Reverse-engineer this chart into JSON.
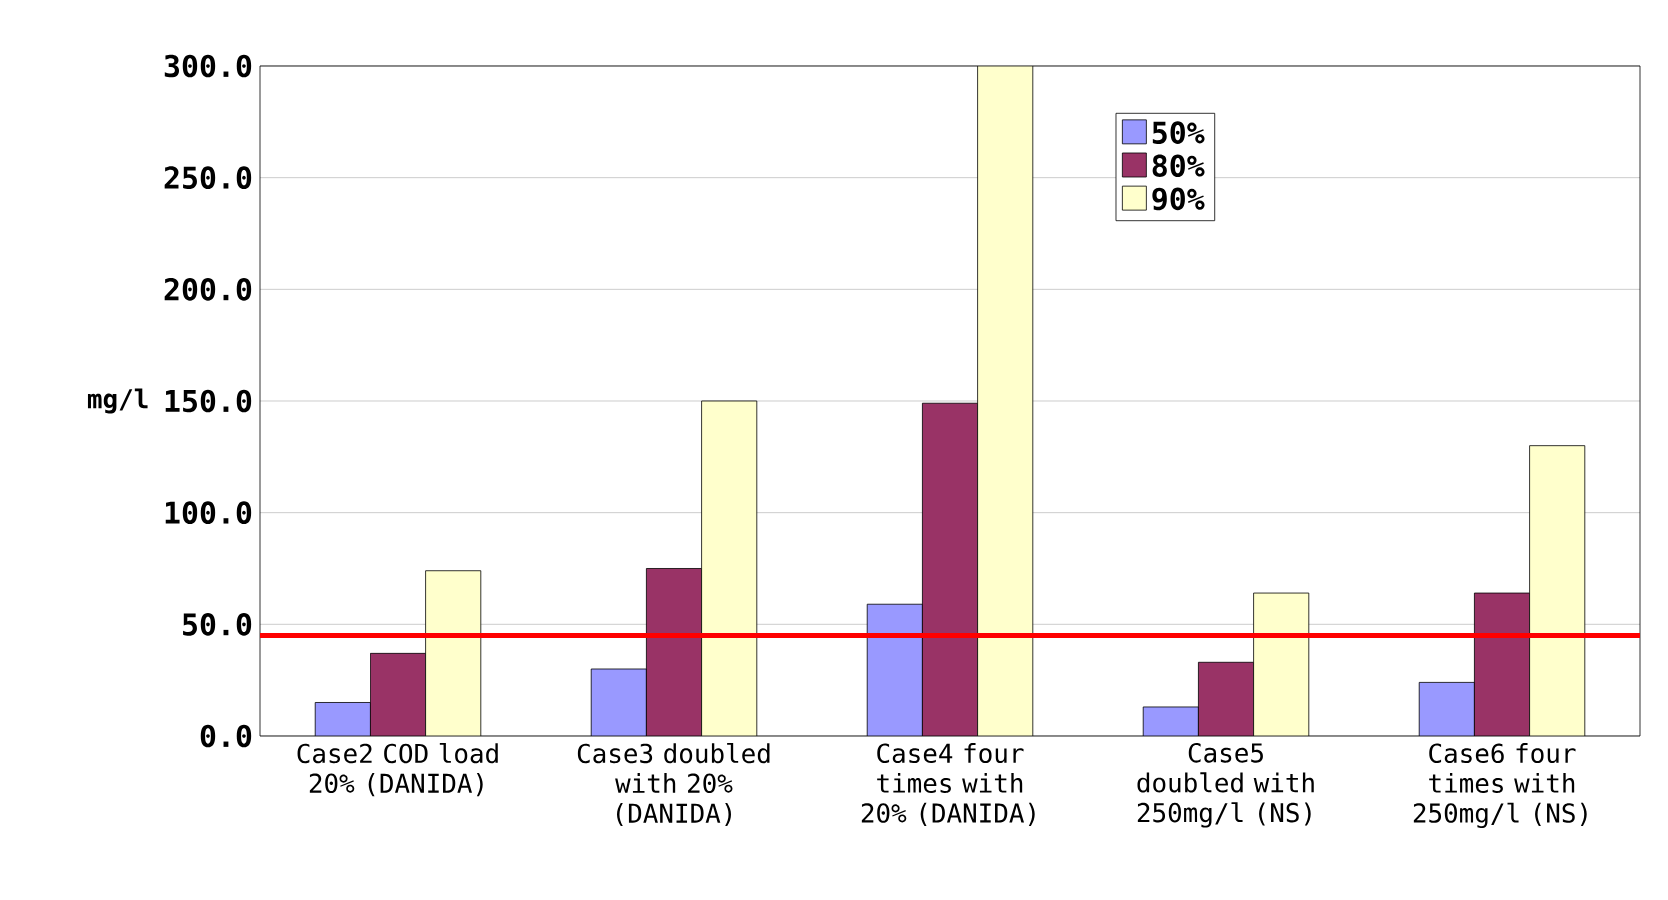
{
  "chart_data": {
    "type": "bar",
    "ylabel": "mg/l",
    "categories": [
      "Case2 COD load 20% (DANIDA)",
      "Case3 doubled with 20% (DANIDA)",
      "Case4 four times with 20% (DANIDA)",
      "Case5 doubled with 250mg/l (NS)",
      "Case6 four times with 250mg/l (NS)"
    ],
    "series": [
      {
        "name": "50%",
        "color": "#9999ff",
        "values": [
          15,
          30,
          59,
          13,
          24
        ]
      },
      {
        "name": "80%",
        "color": "#993366",
        "values": [
          37,
          75,
          149,
          33,
          64
        ]
      },
      {
        "name": "90%",
        "color": "#ffffcc",
        "values": [
          74,
          150,
          300,
          64,
          130
        ]
      }
    ],
    "ylim": [
      0,
      300
    ],
    "yticks": [
      {
        "value": 0,
        "label": "0.0"
      },
      {
        "value": 50,
        "label": "50.0"
      },
      {
        "value": 100,
        "label": "100.0"
      },
      {
        "value": 150,
        "label": "150.0"
      },
      {
        "value": 200,
        "label": "200.0"
      },
      {
        "value": 250,
        "label": "250.0"
      },
      {
        "value": 300,
        "label": "300.0"
      }
    ],
    "grid": "y",
    "legend": "top right",
    "ref_lines": [
      {
        "axis": "y",
        "value": 45,
        "color": "#ff0000"
      }
    ]
  }
}
